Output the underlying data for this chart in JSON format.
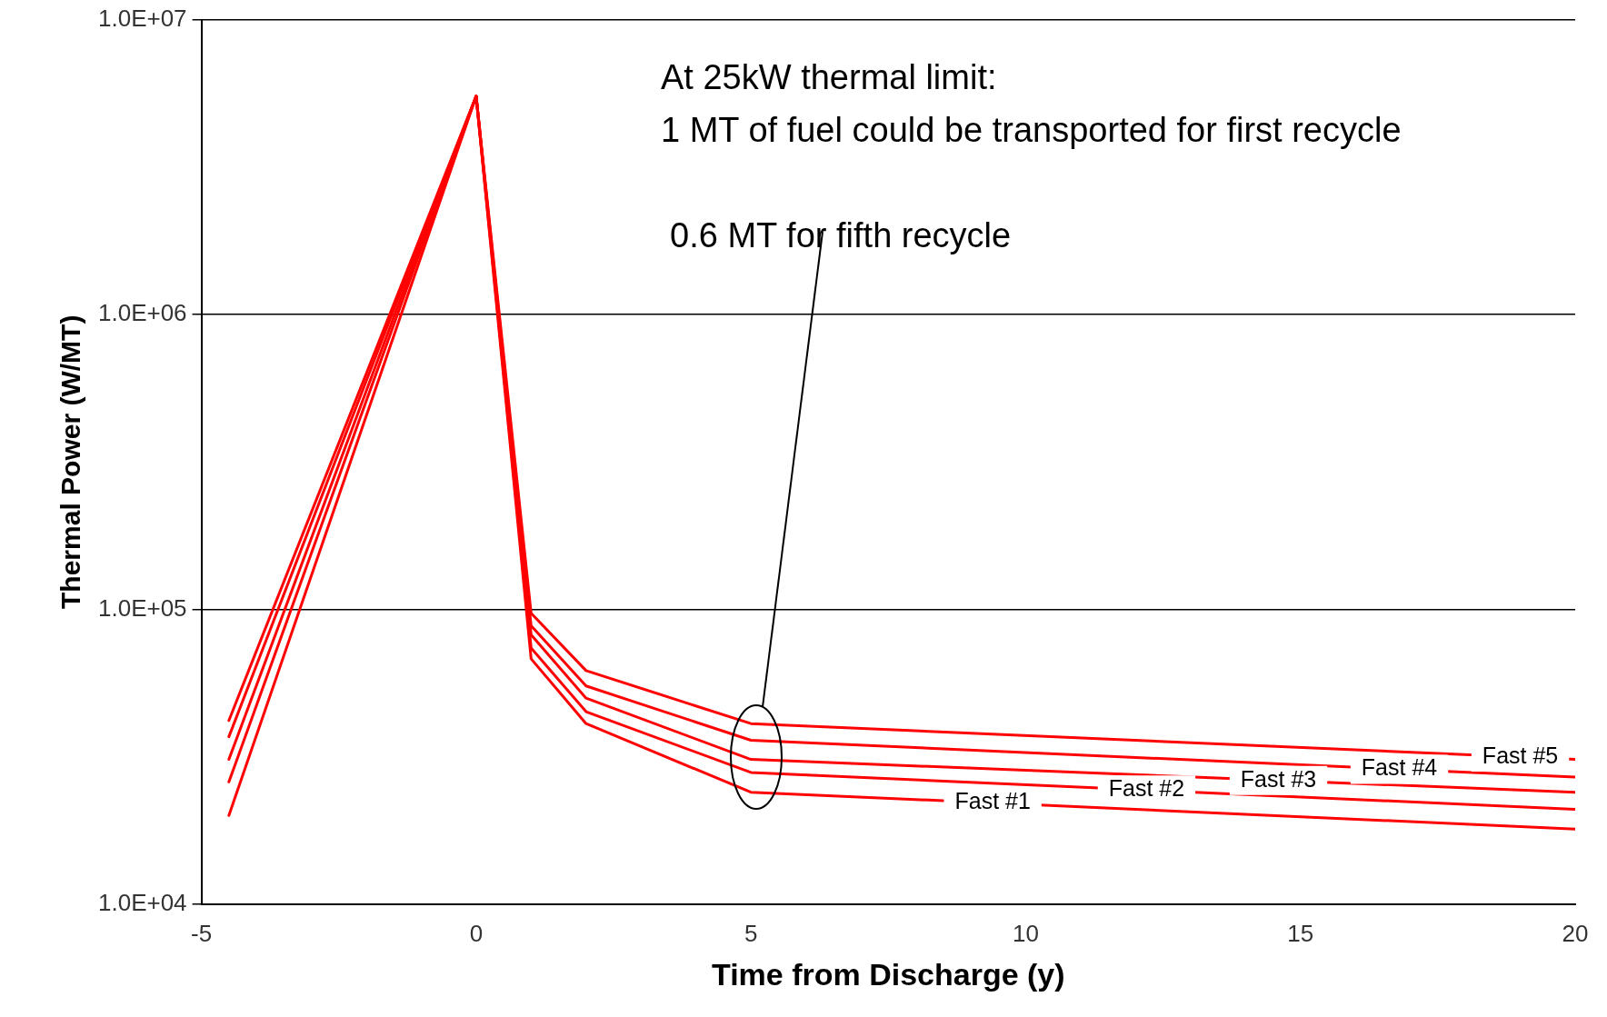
{
  "chart_data": {
    "type": "line",
    "xlabel": "Time from Discharge (y)",
    "ylabel": "Thermal Power (W/MT)",
    "annotations": [
      "At 25kW thermal limit:",
      "1 MT of fuel could be transported for first recycle",
      "0.6 MT for fifth recycle"
    ],
    "x": [
      -4.5,
      0,
      1,
      2,
      5,
      20
    ],
    "series": [
      {
        "name": "Fast #1",
        "color": "#ff0000",
        "values": [
          20000,
          5500000,
          68000,
          41000,
          24000,
          18000
        ]
      },
      {
        "name": "Fast #2",
        "color": "#ff0000",
        "values": [
          26000,
          5500000,
          74000,
          45000,
          28000,
          21000
        ]
      },
      {
        "name": "Fast #3",
        "color": "#ff0000",
        "values": [
          31000,
          5500000,
          82000,
          50000,
          31000,
          24000
        ]
      },
      {
        "name": "Fast #4",
        "color": "#ff0000",
        "values": [
          37000,
          5500000,
          88000,
          55000,
          36000,
          27000
        ]
      },
      {
        "name": "Fast #5",
        "color": "#ff0000",
        "values": [
          42000,
          5500000,
          97000,
          62000,
          41000,
          31000
        ]
      }
    ],
    "log": "y",
    "xlim": [
      -5,
      20
    ],
    "xticks": [
      -5,
      0,
      5,
      10,
      15,
      20
    ],
    "ylim": [
      10000,
      10000000
    ],
    "yticks": [
      {
        "value": 10000,
        "label": "1.0E+04"
      },
      {
        "value": 100000,
        "label": "1.0E+05"
      },
      {
        "value": 1000000,
        "label": "1.0E+06"
      },
      {
        "value": 10000000,
        "label": "1.0E+07"
      }
    ],
    "grid": "y",
    "legend": false,
    "marker": "none",
    "line_style": "solid"
  }
}
